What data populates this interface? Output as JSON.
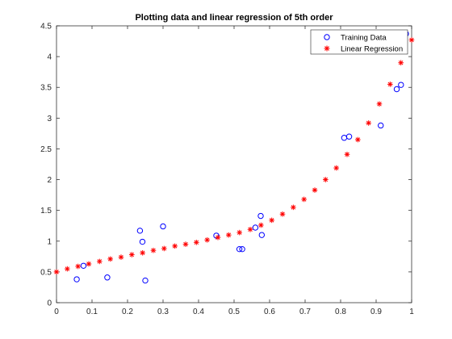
{
  "chart_data": {
    "type": "scatter",
    "title": "Plotting data and linear regression of 5th order",
    "xlabel": "",
    "ylabel": "",
    "xlim": [
      0,
      1
    ],
    "ylim": [
      0,
      4.5
    ],
    "xticks": [
      0,
      0.1,
      0.2,
      0.3,
      0.4,
      0.5,
      0.6,
      0.7,
      0.8,
      0.9,
      1
    ],
    "yticks": [
      0,
      0.5,
      1,
      1.5,
      2,
      2.5,
      3,
      3.5,
      4,
      4.5
    ],
    "xtick_labels": [
      "0",
      "0.1",
      "0.2",
      "0.3",
      "0.4",
      "0.5",
      "0.6",
      "0.7",
      "0.8",
      "0.9",
      "1"
    ],
    "ytick_labels": [
      "0",
      "0.5",
      "1",
      "1.5",
      "2",
      "2.5",
      "3",
      "3.5",
      "4",
      "4.5"
    ],
    "grid": false,
    "legend_position": "top-right",
    "series": [
      {
        "name": "Training Data",
        "marker": "circle",
        "color": "#0000ff",
        "x": [
          0.057,
          0.076,
          0.143,
          0.235,
          0.242,
          0.25,
          0.3,
          0.45,
          0.515,
          0.523,
          0.56,
          0.575,
          0.578,
          0.81,
          0.824,
          0.913,
          0.958,
          0.97,
          0.984
        ],
        "y": [
          0.38,
          0.6,
          0.41,
          1.17,
          0.99,
          0.36,
          1.24,
          1.09,
          0.87,
          0.87,
          1.22,
          1.41,
          1.1,
          2.68,
          2.7,
          2.88,
          3.47,
          3.54,
          4.37
        ]
      },
      {
        "name": "Linear Regression",
        "marker": "asterisk",
        "color": "#ff0000",
        "x": [
          0,
          0.0303,
          0.0606,
          0.0909,
          0.1212,
          0.1515,
          0.1818,
          0.2121,
          0.2424,
          0.2727,
          0.303,
          0.3333,
          0.3636,
          0.3939,
          0.4242,
          0.4545,
          0.4848,
          0.5152,
          0.5455,
          0.5758,
          0.6061,
          0.6364,
          0.6667,
          0.697,
          0.7273,
          0.7576,
          0.7879,
          0.8182,
          0.8485,
          0.8788,
          0.9091,
          0.9394,
          0.9697,
          1
        ],
        "y": [
          0.5,
          0.55,
          0.59,
          0.63,
          0.67,
          0.71,
          0.74,
          0.78,
          0.81,
          0.85,
          0.88,
          0.92,
          0.95,
          0.98,
          1.02,
          1.06,
          1.1,
          1.14,
          1.19,
          1.26,
          1.34,
          1.44,
          1.55,
          1.68,
          1.83,
          2.0,
          2.19,
          2.41,
          2.65,
          2.92,
          3.23,
          3.55,
          3.9,
          4.27
        ]
      }
    ]
  }
}
